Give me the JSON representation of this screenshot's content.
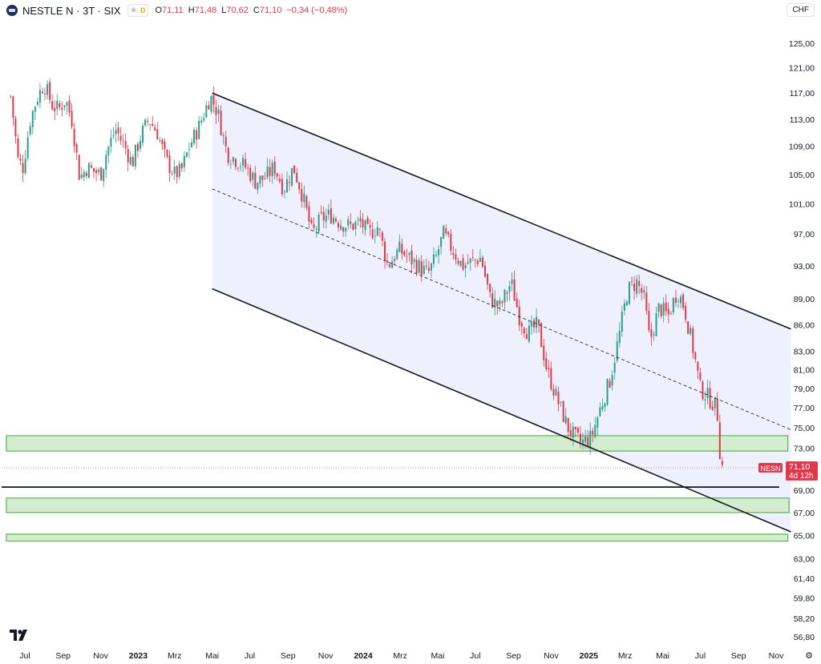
{
  "header": {
    "symbol": "NESTLE N · 3T · SIX",
    "open_label": "O",
    "open": "71,11",
    "high_label": "H",
    "high": "71,48",
    "low_label": "L",
    "low": "70,62",
    "close_label": "C",
    "close": "71,10",
    "change": "−0,34 (−0,48%)",
    "session_badge": "D"
  },
  "currency": "CHF",
  "price_tag": {
    "symbol": "NESN",
    "price": "71,10",
    "countdown": "4d 12h"
  },
  "colors": {
    "up": "#2a9d8f",
    "down": "#e0394c",
    "channel_fill": "#eef0fb",
    "zone_fill": "#d4ecd0",
    "zone_stroke": "#5fb15a",
    "line": "#131722"
  },
  "icons": {
    "logo": "tradingview-logo-icon",
    "settings": "gear-icon",
    "session": "sun-icon"
  },
  "chart_data": {
    "type": "candlestick",
    "y_scale": "log",
    "ylim": [
      55.5,
      128
    ],
    "y_ticks": [
      "125,00",
      "121,00",
      "117,00",
      "113,00",
      "109,00",
      "105,00",
      "101,00",
      "97,00",
      "93,00",
      "89,00",
      "86,00",
      "83,00",
      "81,00",
      "79,00",
      "77,00",
      "75,00",
      "73,00",
      "69,00",
      "67,00",
      "65,00",
      "63,00",
      "61,40",
      "59,80",
      "58,20",
      "56,80"
    ],
    "y_tick_values": [
      125,
      121,
      117,
      113,
      109,
      105,
      101,
      97,
      93,
      89,
      86,
      83,
      81,
      79,
      77,
      75,
      73,
      69,
      67,
      65,
      63,
      61.4,
      59.8,
      58.2,
      56.8
    ],
    "x_ticks": [
      "Jul",
      "Sep",
      "Nov",
      "2023",
      "Mrz",
      "Mai",
      "Jul",
      "Sep",
      "Nov",
      "2024",
      "Mrz",
      "Mai",
      "Jul",
      "Sep",
      "Nov",
      "2025",
      "Mrz",
      "Mai",
      "Jul",
      "Sep",
      "Nov"
    ],
    "x_tick_dates": [
      "2022-07",
      "2022-09",
      "2022-11",
      "2023-01",
      "2023-03",
      "2023-05",
      "2023-07",
      "2023-09",
      "2023-11",
      "2024-01",
      "2024-03",
      "2024-05",
      "2024-07",
      "2024-09",
      "2024-11",
      "2025-01",
      "2025-03",
      "2025-05",
      "2025-07",
      "2025-09",
      "2025-11"
    ],
    "x_bold": [
      "2023",
      "2024",
      "2025"
    ],
    "price_path": [
      [
        "2022-06-08",
        116.5
      ],
      [
        "2022-06-20",
        107
      ],
      [
        "2022-06-28",
        106
      ],
      [
        "2022-07-10",
        113
      ],
      [
        "2022-07-20",
        116
      ],
      [
        "2022-08-01",
        118.5
      ],
      [
        "2022-08-15",
        115
      ],
      [
        "2022-08-25",
        114.5
      ],
      [
        "2022-09-05",
        116
      ],
      [
        "2022-09-15",
        113
      ],
      [
        "2022-09-28",
        104.5
      ],
      [
        "2022-10-10",
        106
      ],
      [
        "2022-10-20",
        105.5
      ],
      [
        "2022-11-01",
        105
      ],
      [
        "2022-11-10",
        108
      ],
      [
        "2022-11-25",
        111.5
      ],
      [
        "2022-12-10",
        109
      ],
      [
        "2022-12-22",
        106.5
      ],
      [
        "2023-01-05",
        110.5
      ],
      [
        "2023-01-18",
        113
      ],
      [
        "2023-02-01",
        111
      ],
      [
        "2023-02-15",
        107
      ],
      [
        "2023-03-01",
        105
      ],
      [
        "2023-03-12",
        105.5
      ],
      [
        "2023-03-25",
        109
      ],
      [
        "2023-04-10",
        112
      ],
      [
        "2023-04-28",
        116.5
      ],
      [
        "2023-05-10",
        114
      ],
      [
        "2023-05-25",
        108
      ],
      [
        "2023-06-10",
        107
      ],
      [
        "2023-06-25",
        106
      ],
      [
        "2023-07-10",
        104
      ],
      [
        "2023-07-25",
        104.5
      ],
      [
        "2023-08-10",
        106
      ],
      [
        "2023-08-25",
        103
      ],
      [
        "2023-09-10",
        106
      ],
      [
        "2023-09-25",
        102
      ],
      [
        "2023-10-10",
        97
      ],
      [
        "2023-10-25",
        99
      ],
      [
        "2023-11-10",
        99.5
      ],
      [
        "2023-11-25",
        98.5
      ],
      [
        "2023-12-10",
        98
      ],
      [
        "2023-12-28",
        98.5
      ],
      [
        "2024-01-10",
        97
      ],
      [
        "2024-01-25",
        98
      ],
      [
        "2024-02-10",
        93
      ],
      [
        "2024-02-28",
        95
      ],
      [
        "2024-03-15",
        94
      ],
      [
        "2024-03-30",
        93
      ],
      [
        "2024-04-15",
        92
      ],
      [
        "2024-04-28",
        94
      ],
      [
        "2024-05-10",
        97
      ],
      [
        "2024-05-25",
        95
      ],
      [
        "2024-06-10",
        93
      ],
      [
        "2024-06-25",
        93.5
      ],
      [
        "2024-07-10",
        94
      ],
      [
        "2024-07-25",
        89
      ],
      [
        "2024-08-10",
        88
      ],
      [
        "2024-08-28",
        91
      ],
      [
        "2024-09-10",
        87
      ],
      [
        "2024-09-25",
        85
      ],
      [
        "2024-10-10",
        86
      ],
      [
        "2024-10-25",
        81
      ],
      [
        "2024-11-10",
        78
      ],
      [
        "2024-11-28",
        75
      ],
      [
        "2024-12-10",
        74
      ],
      [
        "2024-12-20",
        73.5
      ],
      [
        "2025-01-05",
        74
      ],
      [
        "2025-01-20",
        77
      ],
      [
        "2025-02-05",
        80
      ],
      [
        "2025-02-20",
        85
      ],
      [
        "2025-03-05",
        90
      ],
      [
        "2025-03-20",
        91
      ],
      [
        "2025-04-01",
        89
      ],
      [
        "2025-04-10",
        84
      ],
      [
        "2025-04-25",
        88
      ],
      [
        "2025-05-10",
        87
      ],
      [
        "2025-05-25",
        90
      ],
      [
        "2025-06-05",
        88
      ],
      [
        "2025-06-20",
        83
      ],
      [
        "2025-07-01",
        79
      ],
      [
        "2025-07-15",
        78
      ],
      [
        "2025-07-28",
        77
      ],
      [
        "2025-08-01",
        73
      ],
      [
        "2025-08-06",
        71.1
      ]
    ],
    "last_close": 71.1,
    "channel": {
      "upper": [
        [
          "2023-05-01",
          117
        ],
        [
          "2025-11-25",
          85.5
        ]
      ],
      "middle": [
        [
          "2023-05-01",
          103
        ],
        [
          "2025-11-25",
          74.8
        ]
      ],
      "lower": [
        [
          "2023-05-01",
          90.2
        ],
        [
          "2025-11-25",
          65.3
        ]
      ]
    },
    "horizontal_line": 69.3,
    "zones": [
      {
        "from": 72.7,
        "to": 74.2,
        "start": "2022-06-01",
        "end": "2025-11-20"
      },
      {
        "from": 67.0,
        "to": 68.3,
        "start": "2022-06-01",
        "end": "2025-11-22"
      },
      {
        "from": 64.5,
        "to": 65.1,
        "start": "2022-06-01",
        "end": "2025-11-20"
      }
    ],
    "grid": false
  }
}
